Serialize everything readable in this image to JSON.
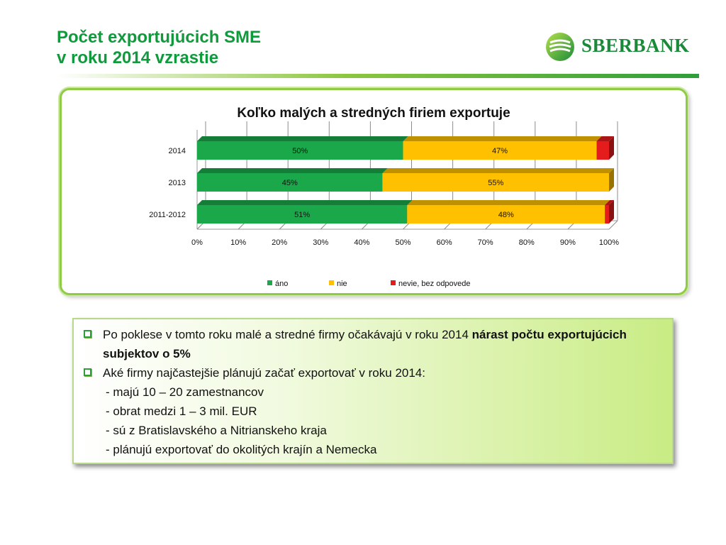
{
  "slide": {
    "title_line1": "Počet exportujúcich SME",
    "title_line2": "v roku 2014 vzrastie",
    "logo_text": "SBERBANK"
  },
  "colors": {
    "title": "#0f9a3c",
    "ano": "#1aa84a",
    "nie": "#ffc000",
    "nevie": "#e51c1c"
  },
  "chart_data": {
    "type": "bar",
    "orientation": "horizontal",
    "stacked": true,
    "percent_stacked": true,
    "three_d": true,
    "title": "Koľko malých a stredných firiem exportuje",
    "categories": [
      "2014",
      "2013",
      "2011-2012"
    ],
    "series": [
      {
        "name": "áno",
        "values": [
          50,
          45,
          51
        ],
        "labels": [
          "50%",
          "45%",
          "51%"
        ],
        "color": "#1aa84a"
      },
      {
        "name": "nie",
        "values": [
          47,
          55,
          48
        ],
        "labels": [
          "47%",
          "55%",
          "48%"
        ],
        "color": "#ffc000"
      },
      {
        "name": "nevie, bez odpovede",
        "values": [
          3,
          0,
          1
        ],
        "labels": [
          "",
          "",
          ""
        ],
        "color": "#e51c1c"
      }
    ],
    "xlim": [
      0,
      100
    ],
    "xticks": [
      "0%",
      "10%",
      "20%",
      "30%",
      "40%",
      "50%",
      "60%",
      "70%",
      "80%",
      "90%",
      "100%"
    ],
    "grid": true,
    "legend_position": "bottom"
  },
  "bullets": [
    {
      "text_plain": "Po poklese v tomto roku malé a stredné firmy očakávajú  v roku 2014 ",
      "text_bold": "nárast počtu exportujúcich subjektov o 5%"
    },
    {
      "text_plain": "Aké firmy  najčastejšie plánujú začať exportovať v roku 2014:",
      "sub_lines": [
        "- majú 10 – 20 zamestnancov",
        "- obrat  medzi 1 – 3 mil. EUR",
        "- sú z Bratislavského a Nitrianskeho kraja",
        "- plánujú exportovať do okolitých krajín a Nemecka"
      ]
    }
  ]
}
